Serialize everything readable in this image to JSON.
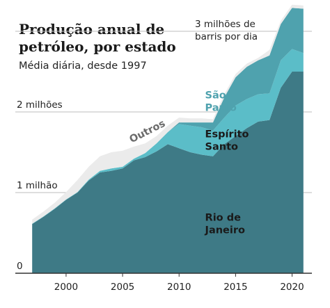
{
  "chart_data": {
    "type": "area",
    "stacked": true,
    "title_lines": [
      "Produção anual de",
      "petróleo, por estado"
    ],
    "subtitle": "Média diária, desde 1997",
    "y_unit_lines": [
      "3 milhões de",
      "barris por dia"
    ],
    "y_ticks": [
      {
        "value": 0,
        "label": "0"
      },
      {
        "value": 1000000,
        "label": "1 milhão"
      },
      {
        "value": 2000000,
        "label": "2 milhões"
      },
      {
        "value": 3000000,
        "label": ""
      }
    ],
    "x_ticks": [
      {
        "value": 2000,
        "label": "2000"
      },
      {
        "value": 2005,
        "label": "2005"
      },
      {
        "value": 2010,
        "label": "2010"
      },
      {
        "value": 2015,
        "label": "2015"
      },
      {
        "value": 2020,
        "label": "2020"
      }
    ],
    "xlim": [
      1996,
      2022
    ],
    "ylim": [
      0,
      3000000
    ],
    "grid": "horizontal",
    "x": [
      1997,
      1998,
      1999,
      2000,
      2001,
      2002,
      2003,
      2004,
      2005,
      2006,
      2007,
      2008,
      2009,
      2010,
      2011,
      2012,
      2013,
      2014,
      2015,
      2016,
      2017,
      2018,
      2019,
      2020,
      2021
    ],
    "series": [
      {
        "name": "Rio de Janeiro",
        "name_lines": [
          "Rio de",
          "Janeiro"
        ],
        "color": "#3e7a86",
        "label_color": "#1a1a1a",
        "values": [
          610000,
          700000,
          800000,
          910000,
          1000000,
          1150000,
          1250000,
          1270000,
          1300000,
          1400000,
          1440000,
          1510000,
          1600000,
          1550000,
          1500000,
          1470000,
          1450000,
          1600000,
          1700000,
          1800000,
          1880000,
          1900000,
          2300000,
          2500000,
          2500000
        ]
      },
      {
        "name": "Espírito Santo",
        "name_lines": [
          "Espírito",
          "Santo"
        ],
        "color": "#5bbdc8",
        "label_color": "#1a1a1a",
        "values": [
          5000,
          5000,
          5000,
          5000,
          5000,
          10000,
          20000,
          30000,
          20000,
          20000,
          50000,
          100000,
          150000,
          300000,
          330000,
          340000,
          320000,
          330000,
          380000,
          360000,
          340000,
          330000,
          340000,
          280000,
          230000
        ]
      },
      {
        "name": "São Paulo",
        "name_lines": [
          "São",
          "Paulo"
        ],
        "color": "#4fa2ae",
        "label_color": "#4fa2ae",
        "values": [
          0,
          0,
          0,
          0,
          0,
          0,
          0,
          0,
          0,
          0,
          0,
          0,
          0,
          20000,
          40000,
          60000,
          100000,
          250000,
          350000,
          400000,
          420000,
          470000,
          450000,
          510000,
          550000
        ]
      },
      {
        "name": "Outros",
        "name_lines": [
          "Outros"
        ],
        "color": "#ebebeb",
        "label_color": "#6b6b6b",
        "values": [
          50000,
          60000,
          70000,
          90000,
          150000,
          160000,
          180000,
          200000,
          200000,
          150000,
          120000,
          90000,
          80000,
          60000,
          50000,
          50000,
          40000,
          40000,
          40000,
          40000,
          30000,
          70000,
          40000,
          40000,
          40000
        ]
      }
    ]
  }
}
